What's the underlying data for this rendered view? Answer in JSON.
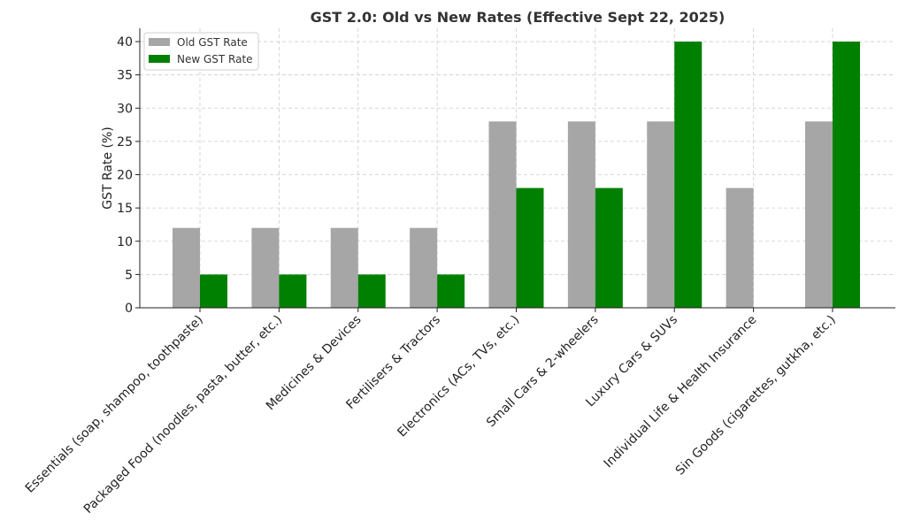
{
  "chart_data": {
    "type": "bar",
    "title": "GST 2.0: Old vs New Rates (Effective Sept 22, 2025)",
    "xlabel": "",
    "ylabel": "GST Rate (%)",
    "ylim": [
      0,
      42
    ],
    "yticks": [
      0,
      5,
      10,
      15,
      20,
      25,
      30,
      35,
      40
    ],
    "grid": true,
    "legend_position": "top-left",
    "categories": [
      "Essentials (soap, shampoo, toothpaste)",
      "Packaged Food (noodles, pasta, butter, etc.)",
      "Medicines & Devices",
      "Fertilisers & Tractors",
      "Electronics (ACs, TVs, etc.)",
      "Small Cars & 2-wheelers",
      "Luxury Cars & SUVs",
      "Individual Life & Health Insurance",
      "Sin Goods (cigarettes, gutkha, etc.)"
    ],
    "series": [
      {
        "name": "Old GST Rate",
        "color": "#a6a6a6",
        "values": [
          12,
          12,
          12,
          12,
          28,
          28,
          28,
          18,
          28
        ]
      },
      {
        "name": "New GST Rate",
        "color": "#008000",
        "values": [
          5,
          5,
          5,
          5,
          18,
          18,
          40,
          0,
          40
        ]
      }
    ]
  }
}
